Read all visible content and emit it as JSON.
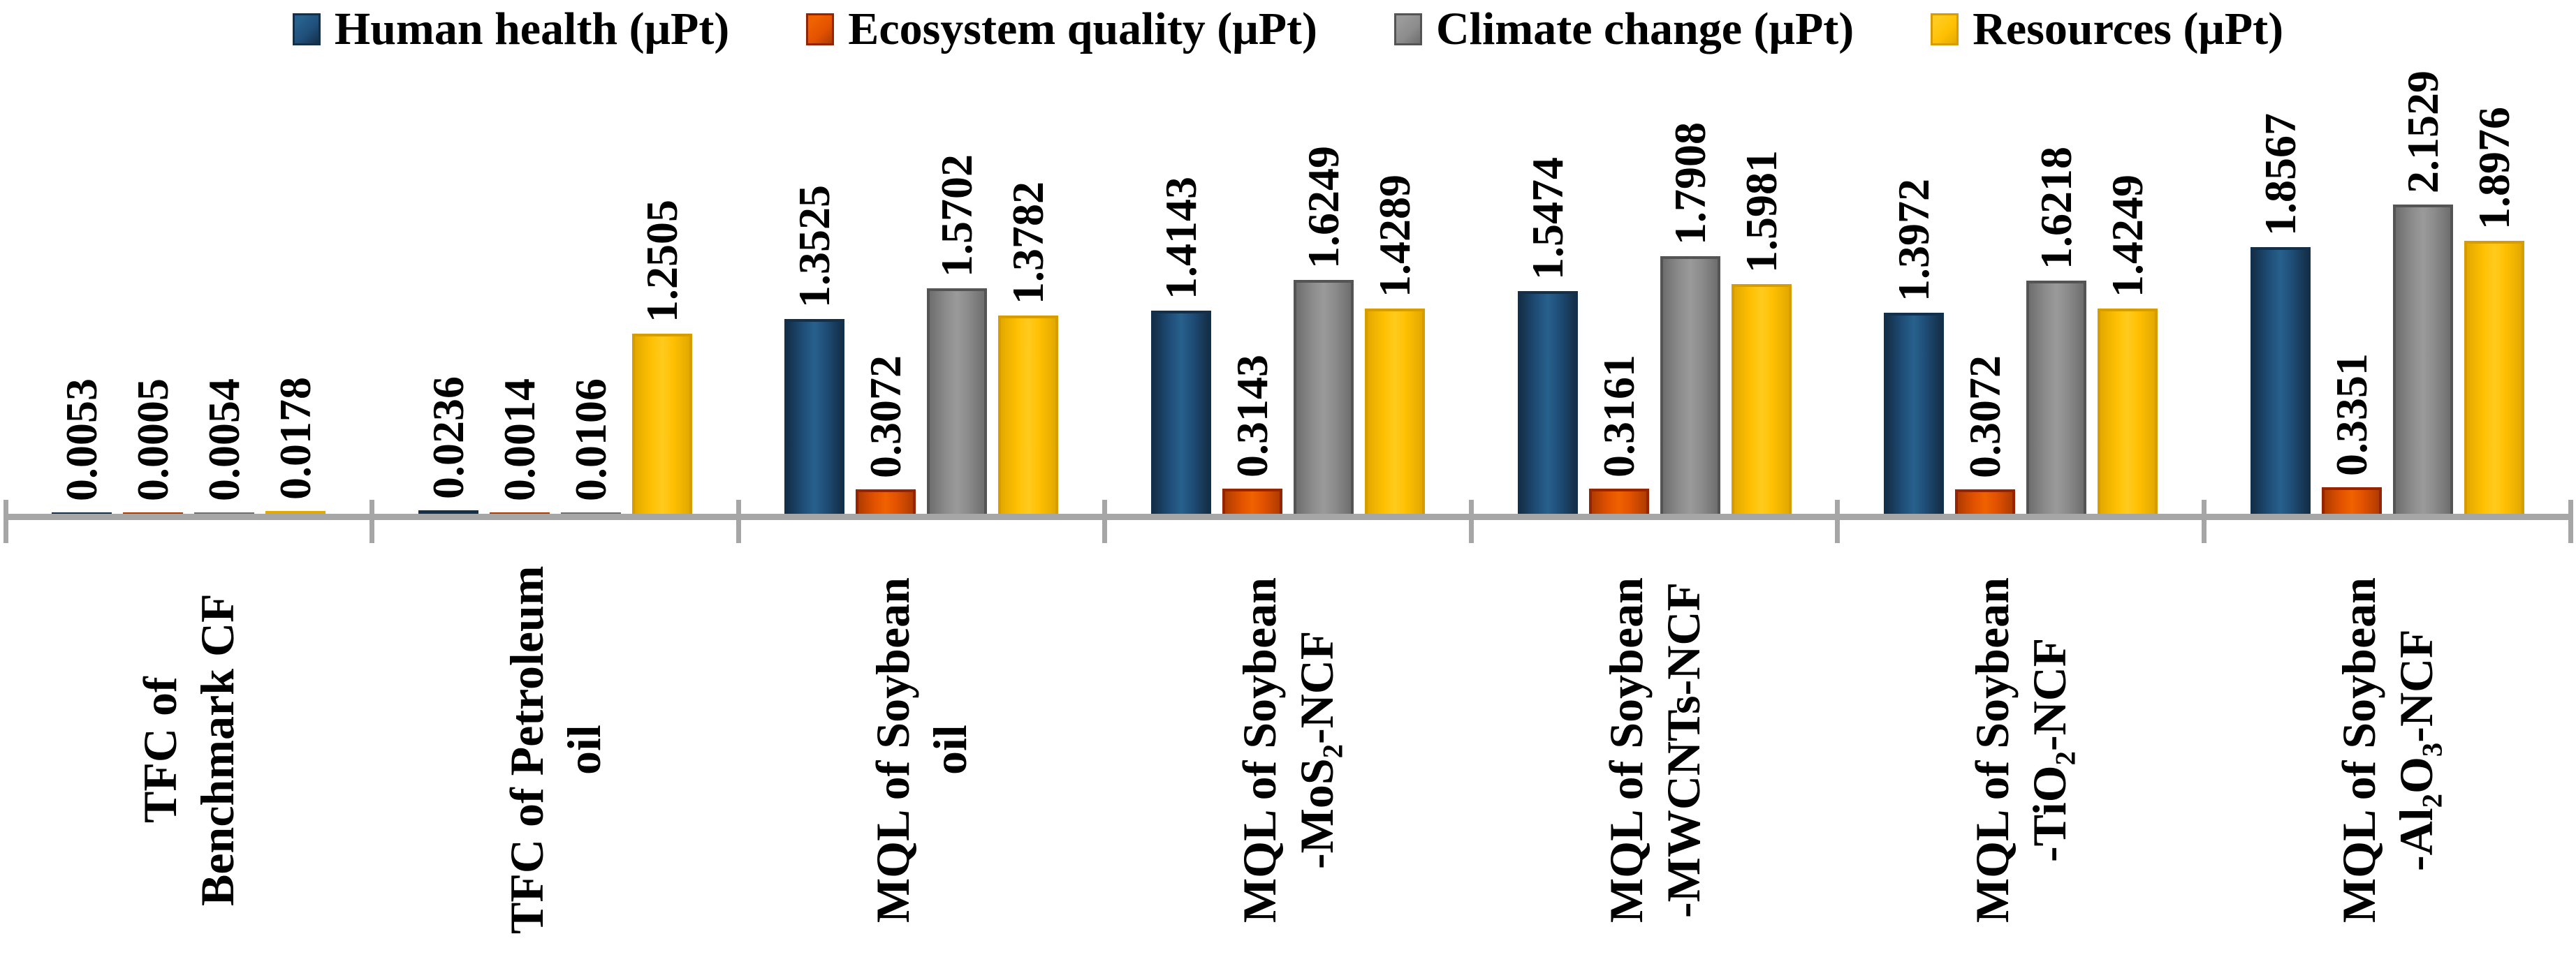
{
  "chart_data": {
    "type": "bar",
    "title": "",
    "xlabel": "",
    "ylabel": "",
    "unit": "μPt",
    "grid": false,
    "legend_position": "top",
    "value_labels_rotated": true,
    "category_labels_rotated": true,
    "ylim": [
      0,
      2.2529
    ],
    "axis_color": "#a6a6a6",
    "categories": [
      "TFC of\nBenchmark CF",
      "TFC of Petroleum\noil",
      "MQL of Soybean\noil",
      "MQL of Soybean\n-MoS₂-NCF",
      "MQL of Soybean\n-MWCNTs-NCF",
      "MQL of Soybean\n-TiO₂-NCF",
      "MQL of Soybean\n-Al₂O₃-NCF"
    ],
    "series": [
      {
        "name": "Human health (μPt)",
        "key": "human-health",
        "color": "#1f4e79",
        "color_light": "#27618c",
        "color_dark": "#142f49",
        "border": "#122f4b",
        "values": [
          0.0053,
          0.0236,
          1.3525,
          1.4143,
          1.5474,
          1.3972,
          1.8567
        ],
        "labels": [
          "0.0053",
          "0.0236",
          "1.3525",
          "1.4143",
          "1.5474",
          "1.3972",
          "1.8567"
        ]
      },
      {
        "name": "Ecosystem quality (μPt)",
        "key": "ecosystem-quality",
        "color": "#e35200",
        "color_light": "#ef6200",
        "color_dark": "#b03c00",
        "border": "#962400",
        "values": [
          0.0005,
          0.0014,
          0.3072,
          0.3143,
          0.3161,
          0.3072,
          0.3351
        ],
        "labels": [
          "0.0005",
          "0.0014",
          "0.3072",
          "0.3143",
          "0.3161",
          "0.3072",
          "0.3351"
        ]
      },
      {
        "name": "Climate change (μPt)",
        "key": "climate-change",
        "color": "#8c8c8c",
        "color_light": "#9a9a9a",
        "color_dark": "#6e6e6e",
        "border": "#545454",
        "values": [
          0.0054,
          0.0106,
          1.5702,
          1.6249,
          1.7908,
          1.6218,
          2.1529
        ],
        "labels": [
          "0.0054",
          "0.0106",
          "1.5702",
          "1.6249",
          "1.7908",
          "1.6218",
          "2.1529"
        ]
      },
      {
        "name": "Resources (μPt)",
        "key": "resources",
        "color": "#ffc002",
        "color_light": "#ffcb1e",
        "color_dark": "#e3a900",
        "border": "#d69c00",
        "values": [
          0.0178,
          1.2505,
          1.3782,
          1.4289,
          1.5981,
          1.4249,
          1.8976
        ],
        "labels": [
          "0.0178",
          "1.2505",
          "1.3782",
          "1.4289",
          "1.5981",
          "1.4249",
          "1.8976"
        ]
      }
    ]
  }
}
